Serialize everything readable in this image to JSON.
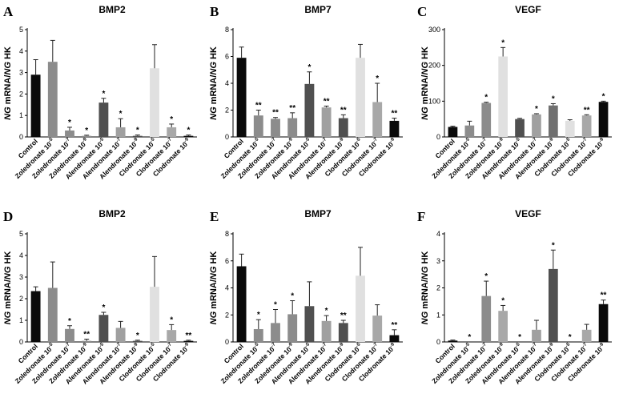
{
  "figure": {
    "ylabel_parts": [
      "NG",
      " mRNA/",
      "NG",
      " HK"
    ],
    "star_single": "*",
    "star_double": "**"
  },
  "chart_data": [
    {
      "panel": "A",
      "type": "bar",
      "title": "BMP2",
      "ylabel": "NG mRNA/NG HK",
      "ylim": [
        0,
        5
      ],
      "yticks": [
        0,
        1,
        2,
        3,
        4,
        5
      ],
      "categories": [
        {
          "base": "Control",
          "exp": ""
        },
        {
          "base": "Zoledronate 10",
          "exp": "-5"
        },
        {
          "base": "Zoledronate 10",
          "exp": "-7"
        },
        {
          "base": "Zoledronate 10",
          "exp": "-9"
        },
        {
          "base": "Alendronate 10",
          "exp": "-5"
        },
        {
          "base": "Alendronate 10",
          "exp": "-7"
        },
        {
          "base": "Alendronate 10",
          "exp": "-9"
        },
        {
          "base": "Clodronate 10",
          "exp": "-5"
        },
        {
          "base": "Clodronate 10",
          "exp": "-7"
        },
        {
          "base": "Clodronate 10",
          "exp": "-9"
        }
      ],
      "values": [
        2.9,
        3.5,
        0.3,
        0.05,
        1.6,
        0.45,
        0.05,
        3.2,
        0.45,
        0.05
      ],
      "errors": [
        0.7,
        1.0,
        0.15,
        0.03,
        0.2,
        0.4,
        0.04,
        1.1,
        0.15,
        0.04
      ],
      "significance": [
        "",
        "",
        "*",
        "*",
        "*",
        "*",
        "*",
        "",
        "*",
        "*"
      ],
      "colors": [
        "#0a0a0a",
        "#8c8c8c",
        "#8c8c8c",
        "#8c8c8c",
        "#505050",
        "#a0a0a0",
        "#505050",
        "#e0e0e0",
        "#a8a8a8",
        "#0a0a0a"
      ]
    },
    {
      "panel": "B",
      "type": "bar",
      "title": "BMP7",
      "ylabel": "NG mRNA/NG HK",
      "ylim": [
        0,
        8
      ],
      "yticks": [
        0,
        2,
        4,
        6,
        8
      ],
      "categories": [
        {
          "base": "Control",
          "exp": ""
        },
        {
          "base": "Zoledronate 10",
          "exp": "-5"
        },
        {
          "base": "Zoledronate 10",
          "exp": "-7"
        },
        {
          "base": "Zoledronate 10",
          "exp": "-9"
        },
        {
          "base": "Alendronate 10",
          "exp": "-5"
        },
        {
          "base": "Alendronate 10",
          "exp": "-7"
        },
        {
          "base": "Alendronate 10",
          "exp": "-9"
        },
        {
          "base": "Clodronate 10",
          "exp": "-5"
        },
        {
          "base": "Clodronate 10",
          "exp": "-7"
        },
        {
          "base": "Clodronate 10",
          "exp": "-9"
        }
      ],
      "values": [
        5.9,
        1.6,
        1.35,
        1.4,
        3.95,
        2.2,
        1.4,
        5.9,
        2.6,
        1.2
      ],
      "errors": [
        0.8,
        0.4,
        0.1,
        0.4,
        0.9,
        0.1,
        0.25,
        1.0,
        1.4,
        0.2
      ],
      "significance": [
        "",
        "**",
        "**",
        "**",
        "*",
        "**",
        "**",
        "",
        "*",
        "**"
      ],
      "colors": [
        "#0a0a0a",
        "#8c8c8c",
        "#8c8c8c",
        "#8c8c8c",
        "#505050",
        "#a0a0a0",
        "#505050",
        "#e0e0e0",
        "#a8a8a8",
        "#0a0a0a"
      ]
    },
    {
      "panel": "C",
      "type": "bar",
      "title": "VEGF",
      "ylabel": "NG mRNA/NG HK",
      "ylim": [
        0,
        300
      ],
      "yticks": [
        0,
        100,
        200,
        300
      ],
      "categories": [
        {
          "base": "Control",
          "exp": ""
        },
        {
          "base": "Zoledronate 10",
          "exp": "-5"
        },
        {
          "base": "Zoledronate 10",
          "exp": "-7"
        },
        {
          "base": "Zoledronate 10",
          "exp": "-9"
        },
        {
          "base": "Alendronate 10",
          "exp": "-5"
        },
        {
          "base": "Alendronate 10",
          "exp": "-7"
        },
        {
          "base": "Alendronate 10",
          "exp": "-9"
        },
        {
          "base": "Clodronate 10",
          "exp": "-5"
        },
        {
          "base": "Clodronate 10",
          "exp": "-7"
        },
        {
          "base": "Clodronate 10",
          "exp": "-9"
        }
      ],
      "values": [
        28,
        32,
        95,
        225,
        50,
        63,
        88,
        45,
        60,
        98
      ],
      "errors": [
        2,
        12,
        2,
        25,
        2,
        2,
        5,
        3,
        2,
        2
      ],
      "significance": [
        "",
        "",
        "*",
        "*",
        "",
        "*",
        "*",
        "",
        "**",
        "*"
      ],
      "colors": [
        "#0a0a0a",
        "#8c8c8c",
        "#8c8c8c",
        "#e0e0e0",
        "#505050",
        "#a0a0a0",
        "#707070",
        "#e0e0e0",
        "#a8a8a8",
        "#0a0a0a"
      ]
    },
    {
      "panel": "D",
      "type": "bar",
      "title": "BMP2",
      "ylabel": "NG mRNA/NG HK",
      "ylim": [
        0,
        5
      ],
      "yticks": [
        0,
        1,
        2,
        3,
        4,
        5
      ],
      "categories": [
        {
          "base": "Control",
          "exp": ""
        },
        {
          "base": "Zoledronate 10",
          "exp": "-5"
        },
        {
          "base": "Zoledronate 10",
          "exp": "-7"
        },
        {
          "base": "Zoledronate 10",
          "exp": "-9"
        },
        {
          "base": "Alendronate 10",
          "exp": "-5"
        },
        {
          "base": "Alendronate 10",
          "exp": "-7"
        },
        {
          "base": "Alendronate 10",
          "exp": "-9"
        },
        {
          "base": "Clodronate 10",
          "exp": "-5"
        },
        {
          "base": "Clodronate 10",
          "exp": "-7"
        },
        {
          "base": "Clodronate 10",
          "exp": "-9"
        }
      ],
      "values": [
        2.35,
        2.5,
        0.6,
        0.05,
        1.25,
        0.65,
        0.05,
        2.55,
        0.55,
        0.05
      ],
      "errors": [
        0.2,
        1.2,
        0.15,
        0.08,
        0.12,
        0.3,
        0.03,
        1.4,
        0.25,
        0.03
      ],
      "significance": [
        "",
        "",
        "*",
        "**",
        "*",
        "",
        "*",
        "",
        "*",
        "**"
      ],
      "colors": [
        "#0a0a0a",
        "#8c8c8c",
        "#8c8c8c",
        "#8c8c8c",
        "#505050",
        "#a0a0a0",
        "#505050",
        "#e0e0e0",
        "#a8a8a8",
        "#0a0a0a"
      ]
    },
    {
      "panel": "E",
      "type": "bar",
      "title": "BMP7",
      "ylabel": "NG mRNA/NG HK",
      "ylim": [
        0,
        8
      ],
      "yticks": [
        0,
        2,
        4,
        6,
        8
      ],
      "categories": [
        {
          "base": "Control",
          "exp": ""
        },
        {
          "base": "Zoledronate 10",
          "exp": "-5"
        },
        {
          "base": "Zoledronate 10",
          "exp": "-7"
        },
        {
          "base": "Zoledronate 10",
          "exp": "-9"
        },
        {
          "base": "Alendronate 10",
          "exp": "-5"
        },
        {
          "base": "Alendronate 10",
          "exp": "-7"
        },
        {
          "base": "Alendronate 10",
          "exp": "-9"
        },
        {
          "base": "Clodronate 10",
          "exp": "-5"
        },
        {
          "base": "Clodronate 10",
          "exp": "-7"
        },
        {
          "base": "Clodronate 10",
          "exp": "-9"
        }
      ],
      "values": [
        5.6,
        0.95,
        1.4,
        2.05,
        2.65,
        1.55,
        1.4,
        4.9,
        1.95,
        0.5
      ],
      "errors": [
        0.9,
        0.7,
        1.0,
        1.0,
        1.8,
        0.4,
        0.2,
        2.1,
        0.8,
        0.4
      ],
      "significance": [
        "",
        "*",
        "*",
        "*",
        "",
        "*",
        "**",
        "",
        "",
        "**"
      ],
      "colors": [
        "#0a0a0a",
        "#8c8c8c",
        "#8c8c8c",
        "#8c8c8c",
        "#505050",
        "#a0a0a0",
        "#505050",
        "#e0e0e0",
        "#a8a8a8",
        "#0a0a0a"
      ]
    },
    {
      "panel": "F",
      "type": "bar",
      "title": "VEGF",
      "ylabel": "NG mRNA/NG HK",
      "ylim": [
        0,
        4
      ],
      "yticks": [
        0,
        1,
        2,
        3,
        4
      ],
      "categories": [
        {
          "base": "Control",
          "exp": ""
        },
        {
          "base": "Zoledronate 10",
          "exp": "-5"
        },
        {
          "base": "Zoledronate 10",
          "exp": "-7"
        },
        {
          "base": "Zoledronate 10",
          "exp": "-9"
        },
        {
          "base": "Alendronate 10",
          "exp": "-5"
        },
        {
          "base": "Alendronate 10",
          "exp": "-7"
        },
        {
          "base": "Alendronate 10",
          "exp": "-9"
        },
        {
          "base": "Clodronate 10",
          "exp": "-5"
        },
        {
          "base": "Clodronate 10",
          "exp": "-7"
        },
        {
          "base": "Clodronate 10",
          "exp": "-9"
        }
      ],
      "values": [
        0.05,
        0.0,
        1.7,
        1.15,
        0.0,
        0.45,
        2.7,
        0.0,
        0.45,
        1.4
      ],
      "errors": [
        0.02,
        0.0,
        0.55,
        0.2,
        0.0,
        0.35,
        0.7,
        0.0,
        0.2,
        0.15
      ],
      "significance": [
        "",
        "*",
        "*",
        "*",
        "*",
        "",
        "*",
        "*",
        "",
        "**"
      ],
      "colors": [
        "#0a0a0a",
        "#8c8c8c",
        "#8c8c8c",
        "#a8a8a8",
        "#505050",
        "#a0a0a0",
        "#505050",
        "#e0e0e0",
        "#a8a8a8",
        "#0a0a0a"
      ]
    }
  ]
}
